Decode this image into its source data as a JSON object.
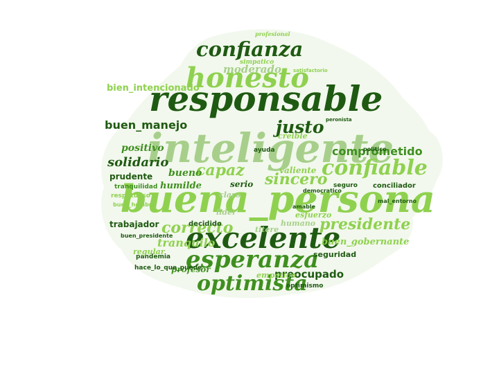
{
  "words": [
    "confianza",
    "honesto",
    "responsable",
    "inteligente",
    "buena_persona",
    "excelente",
    "esperanza",
    "optimista",
    "confiable",
    "capaz",
    "justo",
    "sincero",
    "comprometido",
    "presidente",
    "correcto",
    "bien_intencionado",
    "buen_manejo",
    "moderado",
    "solidario",
    "positivo",
    "humilde",
    "bueno",
    "tranquilo",
    "prudente",
    "tranquilidad",
    "trabajador",
    "preocupado",
    "buen_gobernante",
    "seguridad",
    "pandemia",
    "profesor",
    "hace_lo_que_puede",
    "optimismo",
    "conciliador",
    "seguro",
    "decidido",
    "serio",
    "claro",
    "valiente",
    "respetuoso",
    "buen_hombre",
    "buen_presidente",
    "creible",
    "ayuda",
    "empatico",
    "esfuerzo",
    "humano",
    "politico",
    "mal_entorno",
    "regular",
    "titere",
    "lider",
    "amable",
    "democratico",
    "simpatico",
    "profesional",
    "satisfactorio",
    "peronista"
  ],
  "colors": {
    "dark_green": "#1f5a12",
    "mid_green": "#3f8f1f",
    "light_green": "#8fd14f",
    "pale_green": "#a7cf8b",
    "lime": "#b9e37a",
    "background": "#ffffff"
  }
}
